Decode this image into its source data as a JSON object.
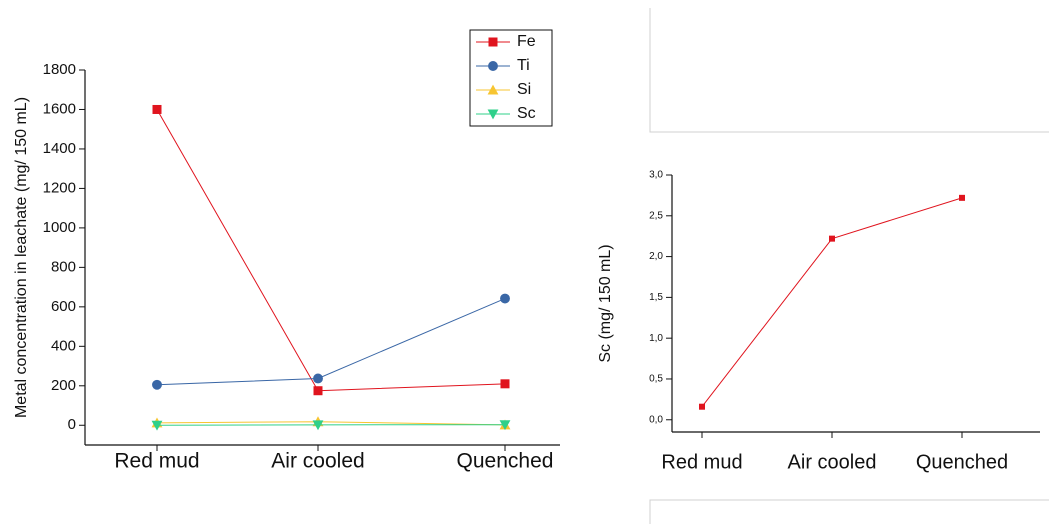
{
  "chart_data": [
    {
      "type": "line",
      "y_label": "Metal concentration in leachate (mg/ 150 mL)",
      "categories": [
        "Red mud",
        "Air cooled",
        "Quenched"
      ],
      "series": [
        {
          "name": "Fe",
          "color": "#e0141e",
          "marker": "square",
          "values": [
            1600,
            175,
            210
          ]
        },
        {
          "name": "Ti",
          "color": "#3a67a6",
          "marker": "circle",
          "values": [
            205,
            237,
            642
          ]
        },
        {
          "name": "Si",
          "color": "#f7c531",
          "marker": "triangle-up",
          "values": [
            12,
            18,
            2
          ]
        },
        {
          "name": "Sc",
          "color": "#2fd08a",
          "marker": "triangle-down",
          "values": [
            0.16,
            2.22,
            2.72
          ]
        }
      ],
      "ylim": [
        -100,
        1800
      ],
      "yticks": [
        0,
        200,
        400,
        600,
        800,
        1000,
        1200,
        1400,
        1600,
        1800
      ],
      "legend": "upper right"
    },
    {
      "type": "line",
      "y_label": "Sc (mg/ 150 mL)",
      "categories": [
        "Red mud",
        "Air cooled",
        "Quenched"
      ],
      "series": [
        {
          "color": "#e0141e",
          "marker": "square",
          "values": [
            0.16,
            2.22,
            2.72
          ]
        }
      ],
      "ylim": [
        -0.15,
        3.0
      ],
      "yticks": [
        {
          "value": 0,
          "label": "0,0"
        },
        {
          "value": 0.5,
          "label": "0,5"
        },
        {
          "value": 1,
          "label": "1,0"
        },
        {
          "value": 1.5,
          "label": "1,5"
        },
        {
          "value": 2,
          "label": "2,0"
        },
        {
          "value": 2.5,
          "label": "2,5"
        },
        {
          "value": 3,
          "label": "3,0"
        }
      ]
    }
  ]
}
